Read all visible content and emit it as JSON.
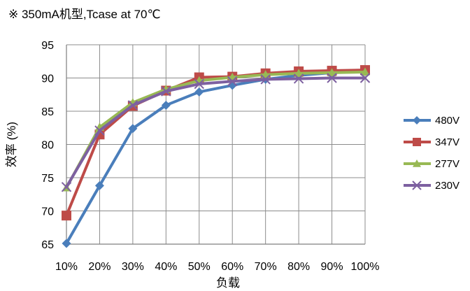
{
  "chart_data": {
    "type": "line",
    "title": "※ 350mA机型,Tcase at 70℃",
    "xlabel": "负载",
    "ylabel": "效率 (%)",
    "categories": [
      "10%",
      "20%",
      "30%",
      "40%",
      "50%",
      "60%",
      "70%",
      "80%",
      "90%",
      "100%"
    ],
    "ylim": [
      65,
      95
    ],
    "yticks": [
      65,
      70,
      75,
      80,
      85,
      90,
      95
    ],
    "grid": true,
    "legend_position": "right",
    "series": [
      {
        "name": "480V",
        "color": "#4A7EBB",
        "marker": "diamond",
        "values": [
          65.1,
          73.8,
          82.4,
          85.9,
          87.9,
          88.9,
          89.8,
          90.4,
          90.8,
          91.0
        ]
      },
      {
        "name": "347V",
        "color": "#BE4B48",
        "marker": "square",
        "values": [
          69.3,
          81.5,
          85.8,
          88.1,
          90.1,
          90.2,
          90.7,
          91.0,
          91.1,
          91.2
        ]
      },
      {
        "name": "277V",
        "color": "#98B954",
        "marker": "triangle",
        "values": [
          73.5,
          82.6,
          86.3,
          88.3,
          89.6,
          90.1,
          90.5,
          90.7,
          90.8,
          90.9
        ]
      },
      {
        "name": "230V",
        "color": "#7D60A0",
        "marker": "x",
        "values": [
          73.6,
          82.1,
          85.9,
          88.0,
          89.1,
          89.5,
          89.8,
          89.9,
          90.0,
          90.0
        ]
      }
    ]
  }
}
